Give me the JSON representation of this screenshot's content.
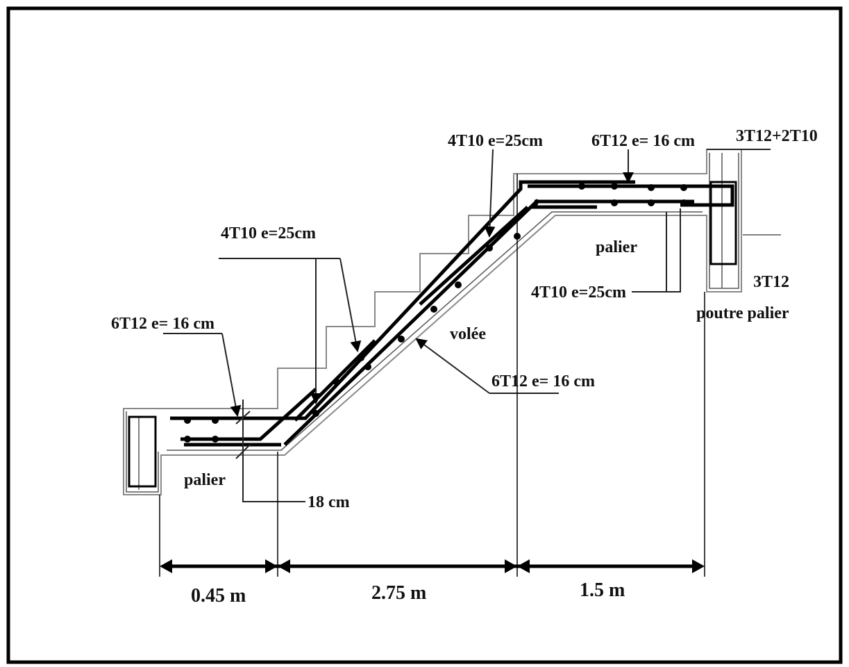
{
  "labels": [
    "4T10 e=25cm",
    "6T12 e= 16 cm",
    "3T12+2T10",
    "4T10 e=25cm",
    "palier",
    "4T10 e=25cm",
    "3T12",
    "poutre palier",
    "6T12 e= 16 cm",
    "volée",
    "6T12 e= 16 cm",
    "palier",
    "18 cm"
  ],
  "dimensions": [
    "0.45 m",
    "2.75 m",
    "1.5 m"
  ]
}
